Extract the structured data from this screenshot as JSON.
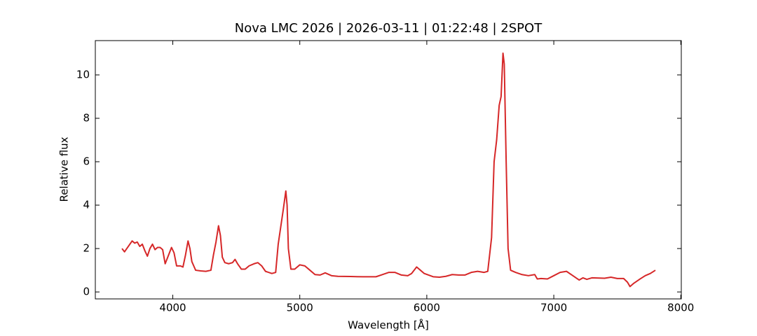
{
  "chart_data": {
    "type": "line",
    "title": "Nova LMC 2026 | 2026-03-11 | 01:22:48 | 2SPOT",
    "xlabel": "Wavelength [Å]",
    "ylabel": "Relative flux",
    "xlim": [
      3390,
      8004
    ],
    "ylim": [
      -0.32,
      11.58
    ],
    "xticks": [
      4000,
      5000,
      6000,
      7000,
      8000
    ],
    "yticks": [
      0,
      2,
      4,
      6,
      8,
      10
    ],
    "series": [
      {
        "color": "#d62728",
        "x": [
          3600,
          3620,
          3650,
          3680,
          3700,
          3720,
          3740,
          3760,
          3780,
          3800,
          3820,
          3840,
          3860,
          3880,
          3900,
          3920,
          3940,
          3960,
          3990,
          4010,
          4030,
          4060,
          4080,
          4100,
          4120,
          4135,
          4150,
          4180,
          4220,
          4260,
          4300,
          4320,
          4340,
          4360,
          4375,
          4390,
          4410,
          4440,
          4470,
          4490,
          4510,
          4540,
          4570,
          4600,
          4640,
          4670,
          4700,
          4730,
          4780,
          4810,
          4830,
          4850,
          4870,
          4890,
          4900,
          4910,
          4930,
          4960,
          5000,
          5040,
          5080,
          5120,
          5160,
          5200,
          5250,
          5300,
          5400,
          5500,
          5600,
          5650,
          5700,
          5750,
          5800,
          5850,
          5880,
          5920,
          5950,
          5980,
          6050,
          6100,
          6150,
          6200,
          6250,
          6300,
          6350,
          6400,
          6450,
          6480,
          6510,
          6530,
          6550,
          6570,
          6585,
          6600,
          6610,
          6625,
          6640,
          6660,
          6700,
          6750,
          6800,
          6850,
          6870,
          6900,
          6950,
          7000,
          7050,
          7100,
          7150,
          7200,
          7230,
          7260,
          7300,
          7400,
          7450,
          7500,
          7550,
          7580,
          7600,
          7630,
          7680,
          7720,
          7760,
          7800
        ],
        "values": [
          2.0,
          1.85,
          2.1,
          2.35,
          2.25,
          2.3,
          2.1,
          2.2,
          1.9,
          1.65,
          2.0,
          2.2,
          1.95,
          2.05,
          2.05,
          1.95,
          1.3,
          1.6,
          2.05,
          1.8,
          1.2,
          1.2,
          1.15,
          1.7,
          2.35,
          2.0,
          1.4,
          1.0,
          0.97,
          0.95,
          1.0,
          1.7,
          2.3,
          3.05,
          2.6,
          1.6,
          1.35,
          1.3,
          1.35,
          1.5,
          1.3,
          1.05,
          1.05,
          1.2,
          1.3,
          1.35,
          1.2,
          0.95,
          0.85,
          0.9,
          2.2,
          3.0,
          3.8,
          4.65,
          4.0,
          2.0,
          1.05,
          1.05,
          1.25,
          1.2,
          1.0,
          0.8,
          0.78,
          0.88,
          0.75,
          0.72,
          0.71,
          0.7,
          0.7,
          0.8,
          0.9,
          0.9,
          0.78,
          0.75,
          0.85,
          1.15,
          1.0,
          0.85,
          0.7,
          0.68,
          0.72,
          0.8,
          0.78,
          0.78,
          0.9,
          0.95,
          0.9,
          0.95,
          2.5,
          6.0,
          7.0,
          8.6,
          9.0,
          11.0,
          10.5,
          6.0,
          2.0,
          1.0,
          0.9,
          0.8,
          0.75,
          0.8,
          0.6,
          0.62,
          0.6,
          0.75,
          0.9,
          0.95,
          0.75,
          0.55,
          0.65,
          0.58,
          0.65,
          0.63,
          0.68,
          0.62,
          0.62,
          0.45,
          0.25,
          0.4,
          0.6,
          0.75,
          0.85,
          1.0
        ]
      }
    ]
  }
}
